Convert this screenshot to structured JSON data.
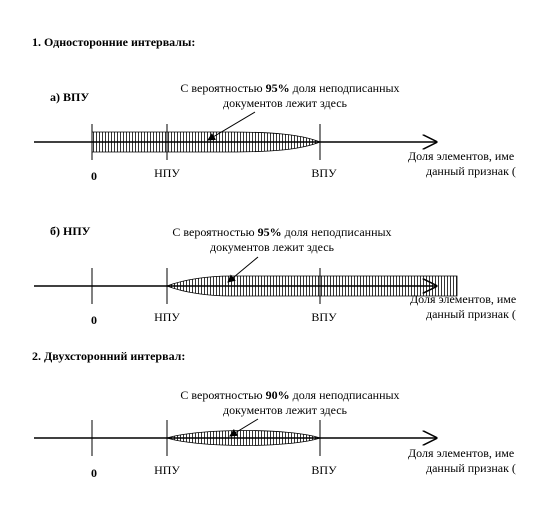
{
  "sections": [
    {
      "title": "1. Односторонние интервалы:",
      "panels": [
        {
          "label": "а) ВПУ",
          "note": {
            "before": "С вероятностью ",
            "bold": "95%",
            "after": " доля неподписанных",
            "line2": "документов лежит здесь"
          },
          "ticks": [
            "0",
            "НПУ",
            "ВПУ"
          ],
          "axis_label": [
            "Доля элементов, име",
            "данный признак ("
          ]
        },
        {
          "label": "б) НПУ",
          "note": {
            "before": "С вероятностью ",
            "bold": "95%",
            "after": " доля неподписанных",
            "line2": "документов лежит здесь"
          },
          "ticks": [
            "0",
            "НПУ",
            "ВПУ"
          ],
          "axis_label": [
            "Доля элементов, име",
            "данный признак ("
          ]
        }
      ]
    },
    {
      "title": "2. Двухсторонний интервал:",
      "panels": [
        {
          "note": {
            "before": "С вероятностью ",
            "bold": "90%",
            "after": " доля неподписанных",
            "line2": "документов лежит здесь"
          },
          "ticks": [
            "0",
            "НПУ",
            "ВПУ"
          ],
          "axis_label": [
            "Доля элементов, име",
            "данный признак ("
          ]
        }
      ]
    }
  ]
}
